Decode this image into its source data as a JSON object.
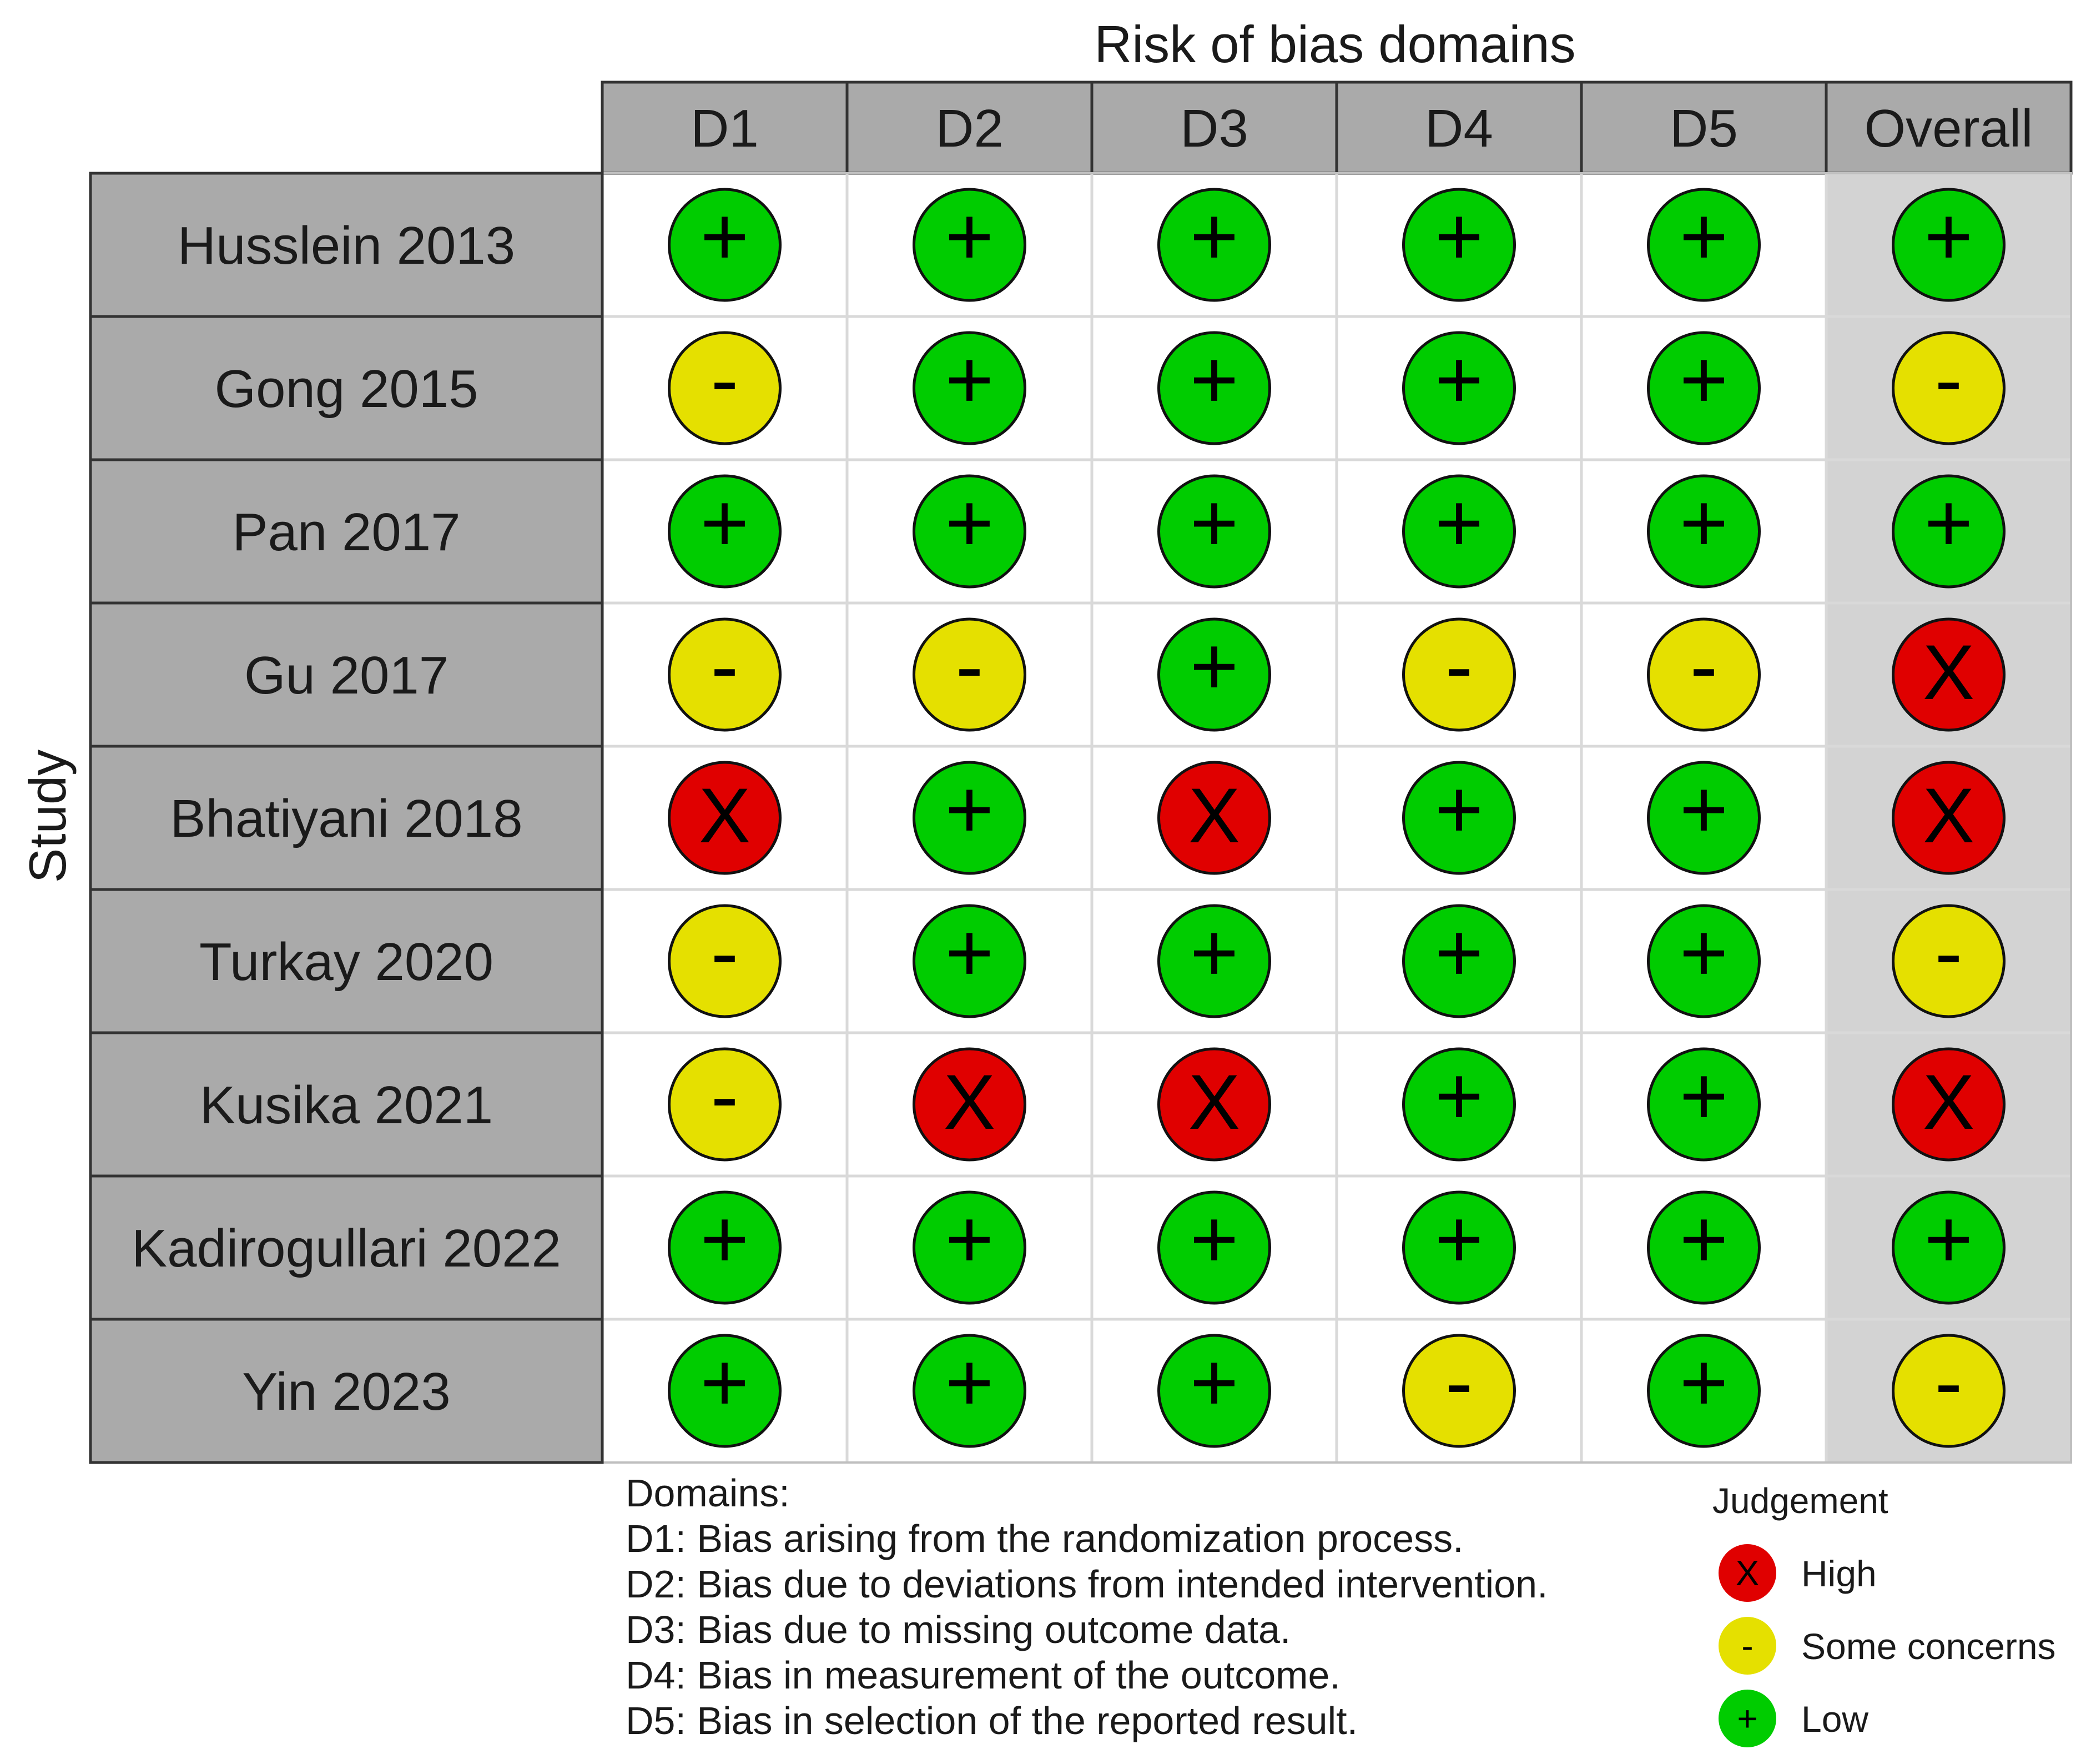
{
  "chart_data": {
    "type": "table",
    "title": "Risk of bias domains",
    "ylabel": "Study",
    "columns": [
      "D1",
      "D2",
      "D3",
      "D4",
      "D5",
      "Overall"
    ],
    "studies": [
      {
        "study": "Husslein 2013",
        "judgements": [
          "Low",
          "Low",
          "Low",
          "Low",
          "Low",
          "Low"
        ]
      },
      {
        "study": "Gong 2015",
        "judgements": [
          "Some concerns",
          "Low",
          "Low",
          "Low",
          "Low",
          "Some concerns"
        ]
      },
      {
        "study": "Pan 2017",
        "judgements": [
          "Low",
          "Low",
          "Low",
          "Low",
          "Low",
          "Low"
        ]
      },
      {
        "study": "Gu 2017",
        "judgements": [
          "Some concerns",
          "Some concerns",
          "Low",
          "Some concerns",
          "Some concerns",
          "High"
        ]
      },
      {
        "study": "Bhatiyani 2018",
        "judgements": [
          "High",
          "Low",
          "High",
          "Low",
          "Low",
          "High"
        ]
      },
      {
        "study": "Turkay 2020",
        "judgements": [
          "Some concerns",
          "Low",
          "Low",
          "Low",
          "Low",
          "Some concerns"
        ]
      },
      {
        "study": "Kusika 2021",
        "judgements": [
          "Some concerns",
          "High",
          "High",
          "Low",
          "Low",
          "High"
        ]
      },
      {
        "study": "Kadirogullari 2022",
        "judgements": [
          "Low",
          "Low",
          "Low",
          "Low",
          "Low",
          "Low"
        ]
      },
      {
        "study": "Yin 2023",
        "judgements": [
          "Low",
          "Low",
          "Low",
          "Some concerns",
          "Low",
          "Some concerns"
        ]
      }
    ],
    "domains_title": "Domains:",
    "domains": [
      "D1: Bias arising from the randomization process.",
      "D2: Bias due to deviations from intended intervention.",
      "D3: Bias due to missing outcome data.",
      "D4: Bias in measurement of the outcome.",
      "D5: Bias in selection of the reported result."
    ],
    "legend_title": "Judgement",
    "legend": [
      {
        "label": "High",
        "symbol": "X",
        "color": "#e00000"
      },
      {
        "label": "Some concerns",
        "symbol": "-",
        "color": "#e5e000"
      },
      {
        "label": "Low",
        "symbol": "+",
        "color": "#00cc00"
      }
    ]
  }
}
